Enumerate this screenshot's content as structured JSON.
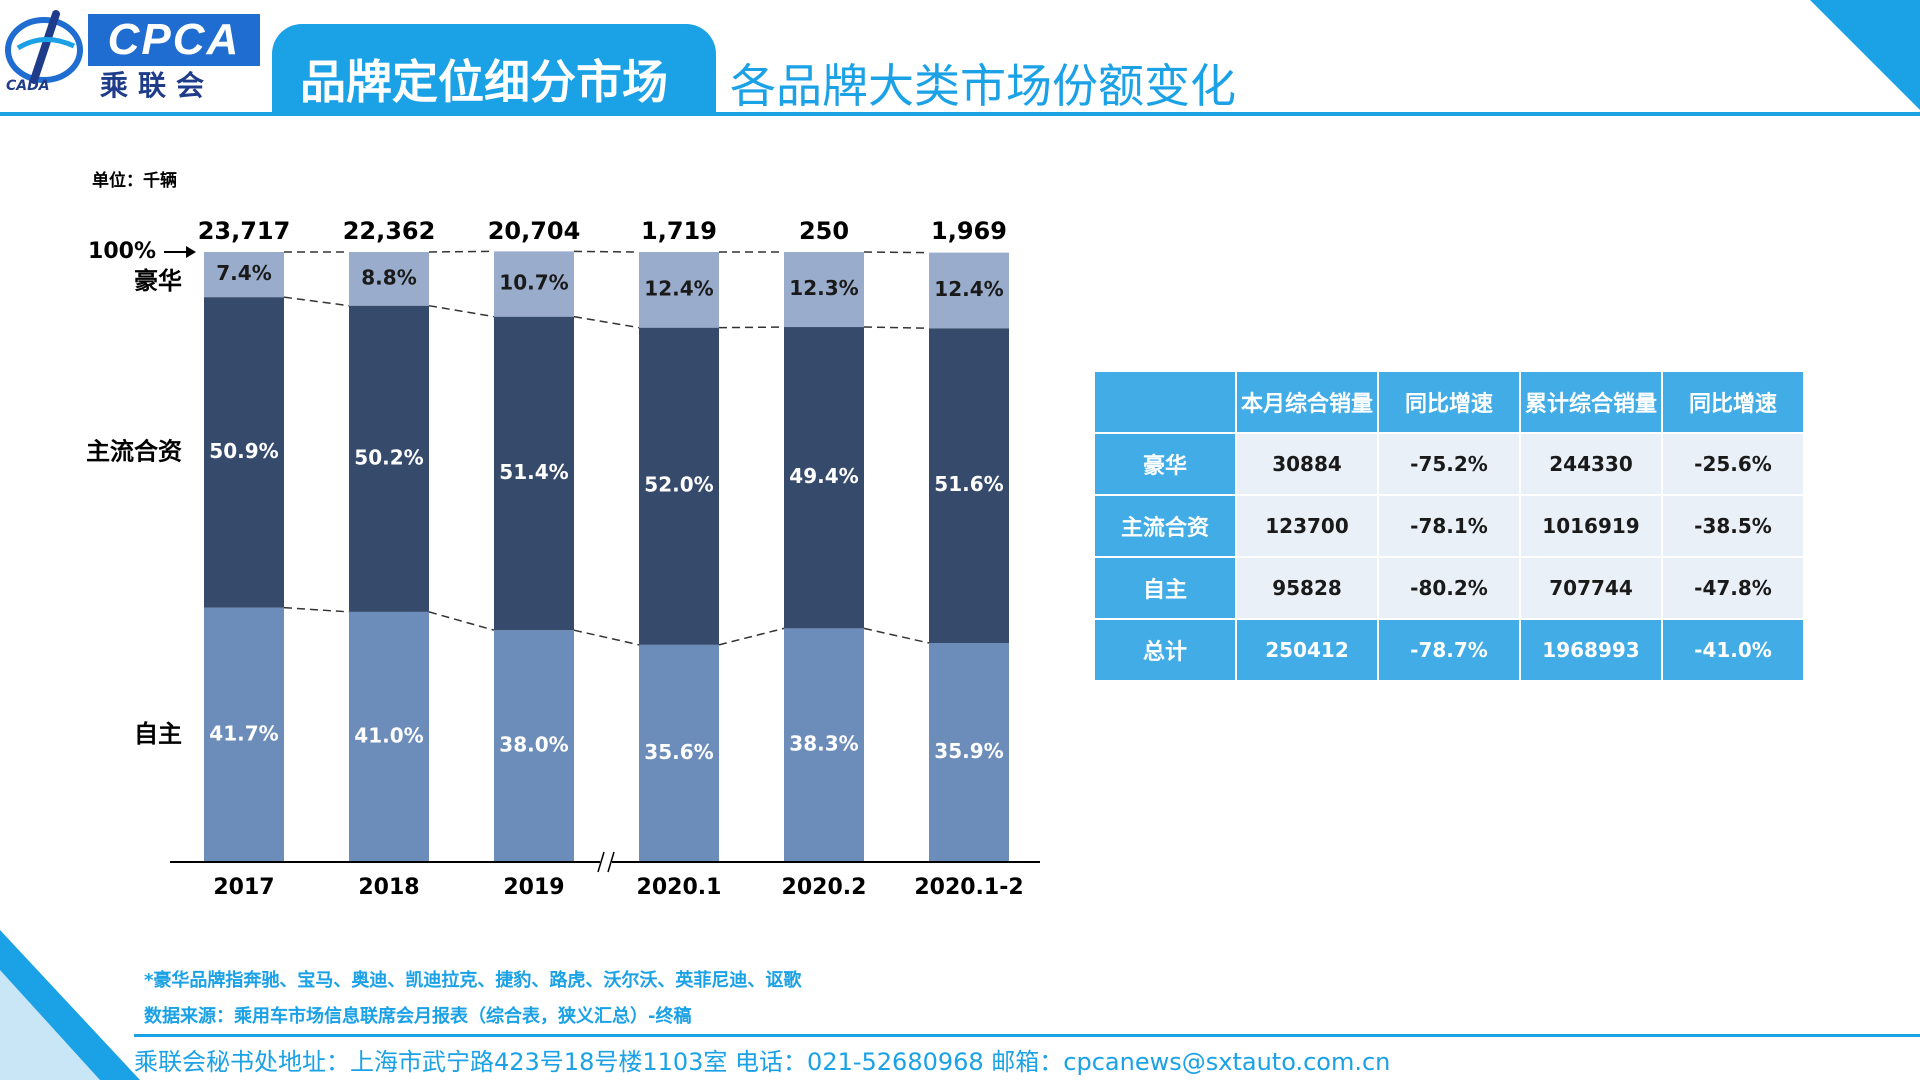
{
  "header": {
    "logo_text": "CPCA",
    "logo_cn": "乘联会",
    "logo_sub": "CADA",
    "title": "品牌定位细分市场",
    "subtitle": "各品牌大类市场份额变化"
  },
  "unit_label": "单位：千辆",
  "colors": {
    "luxury": "#9aaccc",
    "jv": "#364a6c",
    "domestic": "#6c8cba",
    "accent": "#1aa1e6",
    "table_header": "#41ace6",
    "table_cell": "#e9f0f8"
  },
  "chart_data": {
    "type": "bar",
    "stacked": "percent",
    "categories": [
      "2017",
      "2018",
      "2019",
      "2020.1",
      "2020.2",
      "2020.1-2"
    ],
    "totals": [
      "23,717",
      "22,362",
      "20,704",
      "1,719",
      "250",
      "1,969"
    ],
    "series": [
      {
        "name": "自主",
        "values": [
          41.7,
          41.0,
          38.0,
          35.6,
          38.3,
          35.9
        ],
        "labels": [
          "41.7%",
          "41.0%",
          "38.0%",
          "35.6%",
          "38.3%",
          "35.9%"
        ]
      },
      {
        "name": "主流合资",
        "values": [
          50.9,
          50.2,
          51.4,
          52.0,
          49.4,
          51.6
        ],
        "labels": [
          "50.9%",
          "50.2%",
          "51.4%",
          "52.0%",
          "49.4%",
          "51.6%"
        ]
      },
      {
        "name": "豪华",
        "values": [
          7.4,
          8.8,
          10.7,
          12.4,
          12.3,
          12.4
        ],
        "labels": [
          "7.4%",
          "8.8%",
          "10.7%",
          "12.4%",
          "12.3%",
          "12.4%"
        ]
      }
    ],
    "hundred_label": "100%",
    "axis_break_after": "2019",
    "ylim": [
      0,
      100
    ]
  },
  "table": {
    "columns": [
      "本月综合销量",
      "同比增速",
      "累计综合销量",
      "同比增速"
    ],
    "rows": [
      {
        "label": "豪华",
        "cells": [
          "30884",
          "-75.2%",
          "244330",
          "-25.6%"
        ]
      },
      {
        "label": "主流合资",
        "cells": [
          "123700",
          "-78.1%",
          "1016919",
          "-38.5%"
        ]
      },
      {
        "label": "自主",
        "cells": [
          "95828",
          "-80.2%",
          "707744",
          "-47.8%"
        ]
      }
    ],
    "total": {
      "label": "总计",
      "cells": [
        "250412",
        "-78.7%",
        "1968993",
        "-41.0%"
      ]
    }
  },
  "notes": {
    "luxury_def": "*豪华品牌指奔驰、宝马、奥迪、凯迪拉克、捷豹、路虎、沃尔沃、英菲尼迪、讴歌",
    "source": "数据来源：乘用车市场信息联席会月报表（综合表，狭义汇总）-终稿"
  },
  "footer": "乘联会秘书处地址：上海市武宁路423号18号楼1103室  电话：021-52680968   邮箱：cpcanews@sxtauto.com.cn"
}
